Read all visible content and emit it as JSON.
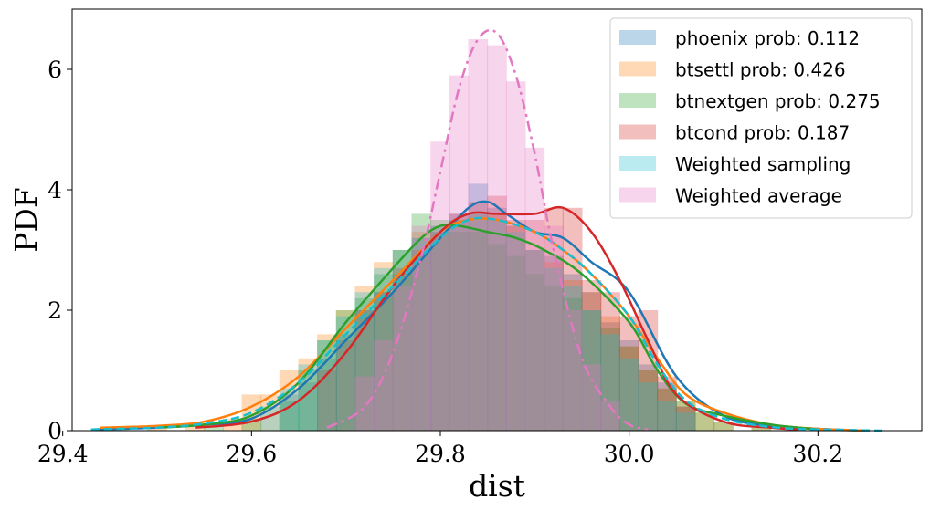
{
  "chart_data": {
    "type": "histogram_kde",
    "xlabel": "dist",
    "ylabel": "PDF",
    "xlim": [
      29.41,
      30.31
    ],
    "ylim": [
      0,
      7.0
    ],
    "xticks": [
      29.4,
      29.6,
      29.8,
      30.0,
      30.2
    ],
    "xtick_labels": [
      "29.4",
      "29.6",
      "29.8",
      "30.0",
      "30.2"
    ],
    "yticks": [
      0,
      2,
      4,
      6
    ],
    "ytick_labels": [
      "0",
      "2",
      "4",
      "6"
    ],
    "grid": false,
    "legend_position": "top-right",
    "bin_width": 0.021,
    "series": [
      {
        "name": "phoenix prob: 0.112",
        "color": "#1f77b4",
        "line_style": "solid",
        "hist_x": [
          29.64,
          29.66,
          29.68,
          29.7,
          29.72,
          29.74,
          29.76,
          29.78,
          29.8,
          29.82,
          29.84,
          29.86,
          29.88,
          29.9,
          29.92,
          29.94,
          29.96,
          29.98,
          30.0,
          30.02,
          30.04,
          30.06
        ],
        "hist_y": [
          0.6,
          0.8,
          1.2,
          1.6,
          2.0,
          2.3,
          2.6,
          3.2,
          3.3,
          3.6,
          4.1,
          3.7,
          3.4,
          3.0,
          2.9,
          2.6,
          2.3,
          1.8,
          1.5,
          1.1,
          0.8,
          0.4
        ],
        "kde_x": [
          29.43,
          29.5,
          29.55,
          29.6,
          29.65,
          29.7,
          29.75,
          29.8,
          29.83,
          29.85,
          29.87,
          29.9,
          29.93,
          29.96,
          30.0,
          30.05,
          30.1,
          30.15,
          30.2,
          30.25
        ],
        "kde_y": [
          0.02,
          0.05,
          0.1,
          0.2,
          0.7,
          1.5,
          2.3,
          3.2,
          3.7,
          3.8,
          3.6,
          3.3,
          3.2,
          2.8,
          2.3,
          0.9,
          0.25,
          0.08,
          0.03,
          0.0
        ]
      },
      {
        "name": "btsettl prob: 0.426",
        "color": "#ff7f0e",
        "line_style": "solid",
        "hist_x": [
          29.46,
          29.5,
          29.54,
          29.58,
          29.6,
          29.62,
          29.64,
          29.66,
          29.68,
          29.7,
          29.72,
          29.74,
          29.76,
          29.78,
          29.8,
          29.82,
          29.84,
          29.86,
          29.88,
          29.9,
          29.92,
          29.94,
          29.96,
          29.98,
          30.0,
          30.02,
          30.04,
          30.06,
          30.08,
          30.1,
          30.14
        ],
        "hist_y": [
          0.05,
          0.05,
          0.1,
          0.2,
          0.6,
          0.6,
          1.0,
          1.2,
          1.6,
          2.0,
          2.4,
          2.8,
          3.0,
          3.3,
          3.4,
          3.5,
          3.6,
          3.6,
          3.4,
          3.0,
          2.8,
          2.5,
          2.3,
          1.9,
          1.4,
          1.0,
          0.7,
          0.5,
          0.3,
          0.15,
          0.05
        ],
        "kde_x": [
          29.44,
          29.5,
          29.55,
          29.6,
          29.65,
          29.7,
          29.75,
          29.8,
          29.83,
          29.86,
          29.9,
          29.93,
          29.96,
          30.0,
          30.03,
          30.06,
          30.1,
          30.15,
          30.2,
          30.25
        ],
        "kde_y": [
          0.05,
          0.08,
          0.15,
          0.4,
          0.9,
          1.7,
          2.5,
          3.3,
          3.5,
          3.5,
          3.3,
          3.0,
          2.6,
          1.9,
          1.2,
          0.6,
          0.3,
          0.1,
          0.03,
          0.0
        ]
      },
      {
        "name": "btnextgen prob: 0.275",
        "color": "#2ca02c",
        "line_style": "solid",
        "hist_x": [
          29.56,
          29.6,
          29.64,
          29.66,
          29.68,
          29.7,
          29.72,
          29.74,
          29.76,
          29.78,
          29.8,
          29.82,
          29.84,
          29.86,
          29.88,
          29.9,
          29.92,
          29.94,
          29.96,
          29.98,
          30.0,
          30.02,
          30.04,
          30.06,
          30.08,
          30.1,
          30.14
        ],
        "hist_y": [
          0.1,
          0.2,
          0.5,
          1.0,
          1.5,
          2.0,
          2.2,
          2.6,
          3.0,
          3.6,
          3.5,
          3.3,
          3.3,
          3.1,
          2.9,
          2.6,
          2.4,
          2.2,
          2.0,
          1.7,
          1.4,
          1.0,
          0.7,
          0.5,
          0.3,
          0.15,
          0.1
        ],
        "kde_x": [
          29.5,
          29.55,
          29.6,
          29.65,
          29.7,
          29.75,
          29.78,
          29.8,
          29.82,
          29.85,
          29.88,
          29.91,
          29.95,
          30.0,
          30.03,
          30.06,
          30.1,
          30.15,
          30.2
        ],
        "kde_y": [
          0.05,
          0.1,
          0.25,
          0.8,
          1.8,
          2.7,
          3.2,
          3.4,
          3.4,
          3.3,
          3.2,
          3.0,
          2.6,
          1.8,
          1.0,
          0.45,
          0.25,
          0.1,
          0.02
        ],
        "kde_end": 30.2
      },
      {
        "name": "btcond prob: 0.187",
        "color": "#d62728",
        "line_style": "solid",
        "hist_x": [
          29.68,
          29.7,
          29.72,
          29.74,
          29.76,
          29.78,
          29.8,
          29.82,
          29.84,
          29.86,
          29.88,
          29.9,
          29.92,
          29.94,
          29.96,
          29.98,
          30.0,
          30.02,
          30.04,
          30.06
        ],
        "hist_y": [
          1.0,
          1.5,
          2.0,
          2.3,
          2.7,
          3.0,
          3.3,
          3.6,
          3.8,
          3.9,
          3.5,
          3.5,
          3.7,
          3.7,
          2.5,
          2.3,
          1.9,
          2.0,
          0.9,
          0.4
        ],
        "kde_x": [
          29.54,
          29.6,
          29.65,
          29.7,
          29.75,
          29.8,
          29.83,
          29.86,
          29.9,
          29.93,
          29.96,
          29.99,
          30.02,
          30.05,
          30.1,
          30.15,
          30.18
        ],
        "kde_y": [
          0.05,
          0.15,
          0.5,
          1.3,
          2.4,
          3.3,
          3.6,
          3.6,
          3.6,
          3.7,
          3.3,
          2.5,
          1.5,
          0.6,
          0.15,
          0.05,
          0.02
        ]
      },
      {
        "name": "Weighted sampling",
        "color": "#17becf",
        "line_style": "dashed",
        "hist_x": [
          29.62,
          29.64,
          29.66,
          29.68,
          29.7,
          29.72,
          29.74,
          29.76,
          29.78,
          29.8,
          29.82,
          29.84,
          29.86,
          29.88,
          29.9,
          29.92,
          29.94,
          29.96,
          29.98,
          30.0,
          30.02,
          30.04,
          30.06
        ],
        "hist_y": [
          0.4,
          0.7,
          1.1,
          1.5,
          1.9,
          2.3,
          2.7,
          3.0,
          3.2,
          3.4,
          3.5,
          3.6,
          3.5,
          3.3,
          3.0,
          2.7,
          2.4,
          2.0,
          1.6,
          1.2,
          0.8,
          0.5,
          0.3
        ],
        "kde_x": [
          29.43,
          29.5,
          29.55,
          29.6,
          29.65,
          29.7,
          29.75,
          29.8,
          29.83,
          29.86,
          29.9,
          29.93,
          29.96,
          30.0,
          30.03,
          30.06,
          30.1,
          30.15,
          30.2,
          30.27
        ],
        "kde_y": [
          0.02,
          0.05,
          0.12,
          0.3,
          0.8,
          1.6,
          2.4,
          3.2,
          3.5,
          3.5,
          3.3,
          3.0,
          2.6,
          1.9,
          1.1,
          0.5,
          0.2,
          0.06,
          0.02,
          0.0
        ]
      },
      {
        "name": "Weighted average",
        "color": "#e377c2",
        "line_style": "dashdot",
        "hist_x": [
          29.72,
          29.74,
          29.76,
          29.78,
          29.8,
          29.82,
          29.84,
          29.86,
          29.88,
          29.9,
          29.92,
          29.94,
          29.96,
          29.98
        ],
        "hist_y": [
          0.9,
          1.5,
          2.4,
          3.4,
          4.8,
          5.9,
          6.5,
          6.4,
          5.8,
          4.7,
          3.4,
          2.0,
          1.1,
          0.5
        ],
        "kde_x": [
          29.68,
          29.72,
          29.75,
          29.78,
          29.8,
          29.82,
          29.84,
          29.86,
          29.88,
          29.9,
          29.92,
          29.95,
          29.98,
          30.0,
          30.02
        ],
        "kde_y": [
          0.05,
          0.4,
          1.3,
          2.9,
          4.3,
          5.7,
          6.5,
          6.6,
          5.9,
          4.6,
          3.0,
          1.2,
          0.4,
          0.1,
          0.02
        ]
      }
    ]
  }
}
